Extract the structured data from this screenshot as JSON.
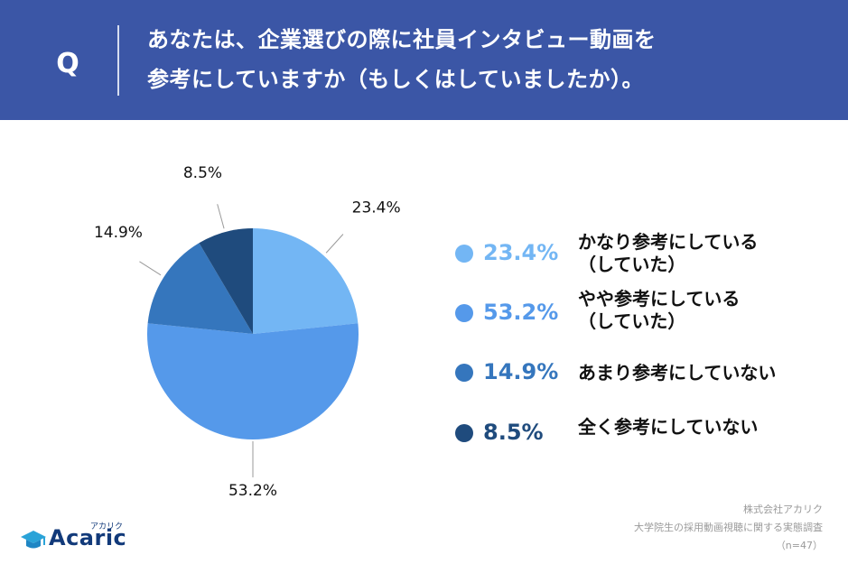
{
  "header": {
    "q_label": "Q",
    "question_line1": "あなたは、企業選びの際に社員インタビュー動画を",
    "question_line2": "参考にしていますか（もしくはしていましたか）。"
  },
  "chart_data": {
    "type": "pie",
    "slices": [
      {
        "label_line1": "かなり参考にしている",
        "label_line2": "（していた）",
        "value": 23.4,
        "display": "23.4%",
        "color": "#73b6f4"
      },
      {
        "label_line1": "やや参考にしている",
        "label_line2": "（していた）",
        "value": 53.2,
        "display": "53.2%",
        "color": "#5599ea"
      },
      {
        "label_line1": "あまり参考にしていない",
        "label_line2": "",
        "value": 14.9,
        "display": "14.9%",
        "color": "#3576bd"
      },
      {
        "label_line1": "全く参考にしていない",
        "label_line2": "",
        "value": 8.5,
        "display": "8.5%",
        "color": "#1f4b7d"
      }
    ]
  },
  "footer": {
    "source_line1": "株式会社アカリク",
    "source_line2": "大学院生の採用動画視聴に関する実態調査",
    "source_line3": "（n=47）",
    "logo_text": "Acaric",
    "logo_small": "アカリク"
  },
  "colors": {
    "header_bg": "#3b56a6",
    "legend_text": "#111111"
  }
}
